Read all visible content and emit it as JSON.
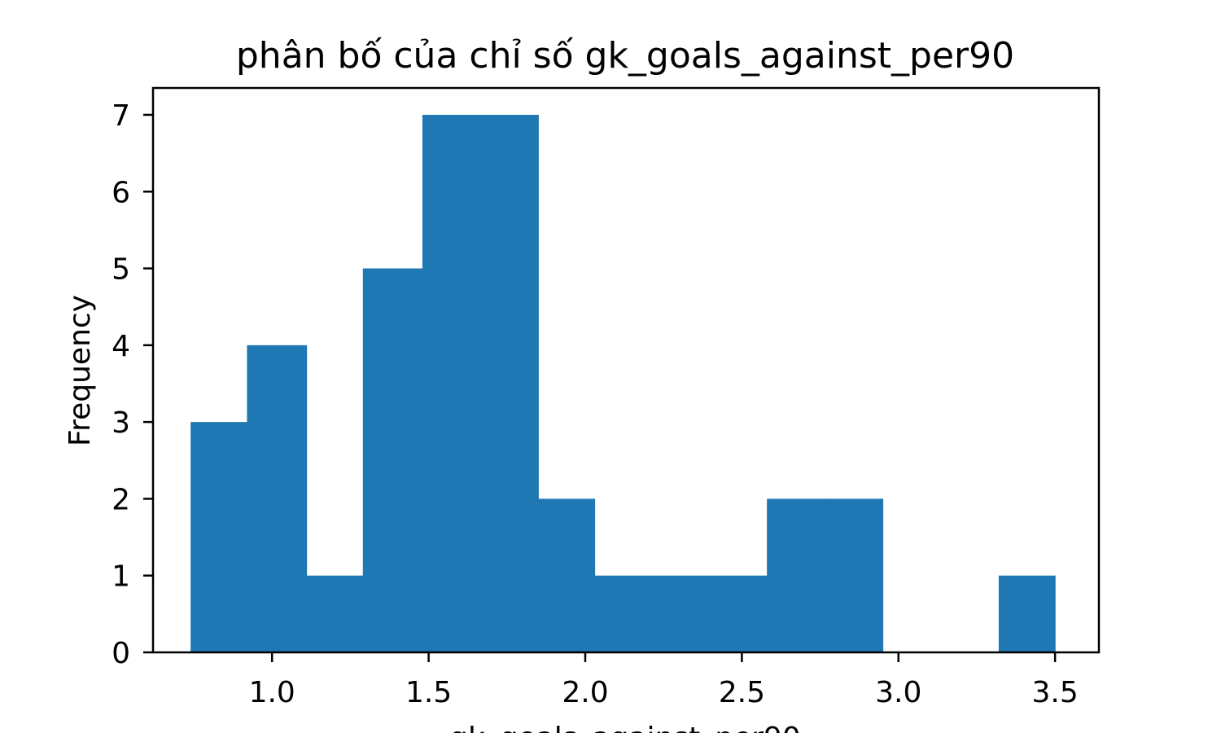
{
  "chart_data": {
    "type": "bar",
    "title": "phân bố của chỉ số gk_goals_against_per90",
    "xlabel": "gk_goals_against_per90",
    "ylabel": "Frequency",
    "bins": [
      {
        "x0": 0.74,
        "x1": 0.92,
        "count": 3
      },
      {
        "x0": 0.92,
        "x1": 1.11,
        "count": 4
      },
      {
        "x0": 1.11,
        "x1": 1.29,
        "count": 1
      },
      {
        "x0": 1.29,
        "x1": 1.48,
        "count": 5
      },
      {
        "x0": 1.48,
        "x1": 1.66,
        "count": 7
      },
      {
        "x0": 1.66,
        "x1": 1.85,
        "count": 7
      },
      {
        "x0": 1.85,
        "x1": 2.03,
        "count": 2
      },
      {
        "x0": 2.03,
        "x1": 2.21,
        "count": 1
      },
      {
        "x0": 2.21,
        "x1": 2.4,
        "count": 1
      },
      {
        "x0": 2.4,
        "x1": 2.58,
        "count": 1
      },
      {
        "x0": 2.58,
        "x1": 2.77,
        "count": 2
      },
      {
        "x0": 2.77,
        "x1": 2.95,
        "count": 2
      },
      {
        "x0": 2.95,
        "x1": 3.14,
        "count": 0
      },
      {
        "x0": 3.14,
        "x1": 3.32,
        "count": 0
      },
      {
        "x0": 3.32,
        "x1": 3.5,
        "count": 1
      }
    ],
    "xticks": [
      1.0,
      1.5,
      2.0,
      2.5,
      3.0,
      3.5
    ],
    "xtick_labels": [
      "1.0",
      "1.5",
      "2.0",
      "2.5",
      "3.0",
      "3.5"
    ],
    "yticks": [
      0,
      1,
      2,
      3,
      4,
      5,
      6,
      7
    ],
    "ytick_labels": [
      "0",
      "1",
      "2",
      "3",
      "4",
      "5",
      "6",
      "7"
    ],
    "xlim": [
      0.62,
      3.64
    ],
    "ylim": [
      0,
      7.35
    ],
    "grid": false,
    "bar_color": "#1f77b4"
  }
}
